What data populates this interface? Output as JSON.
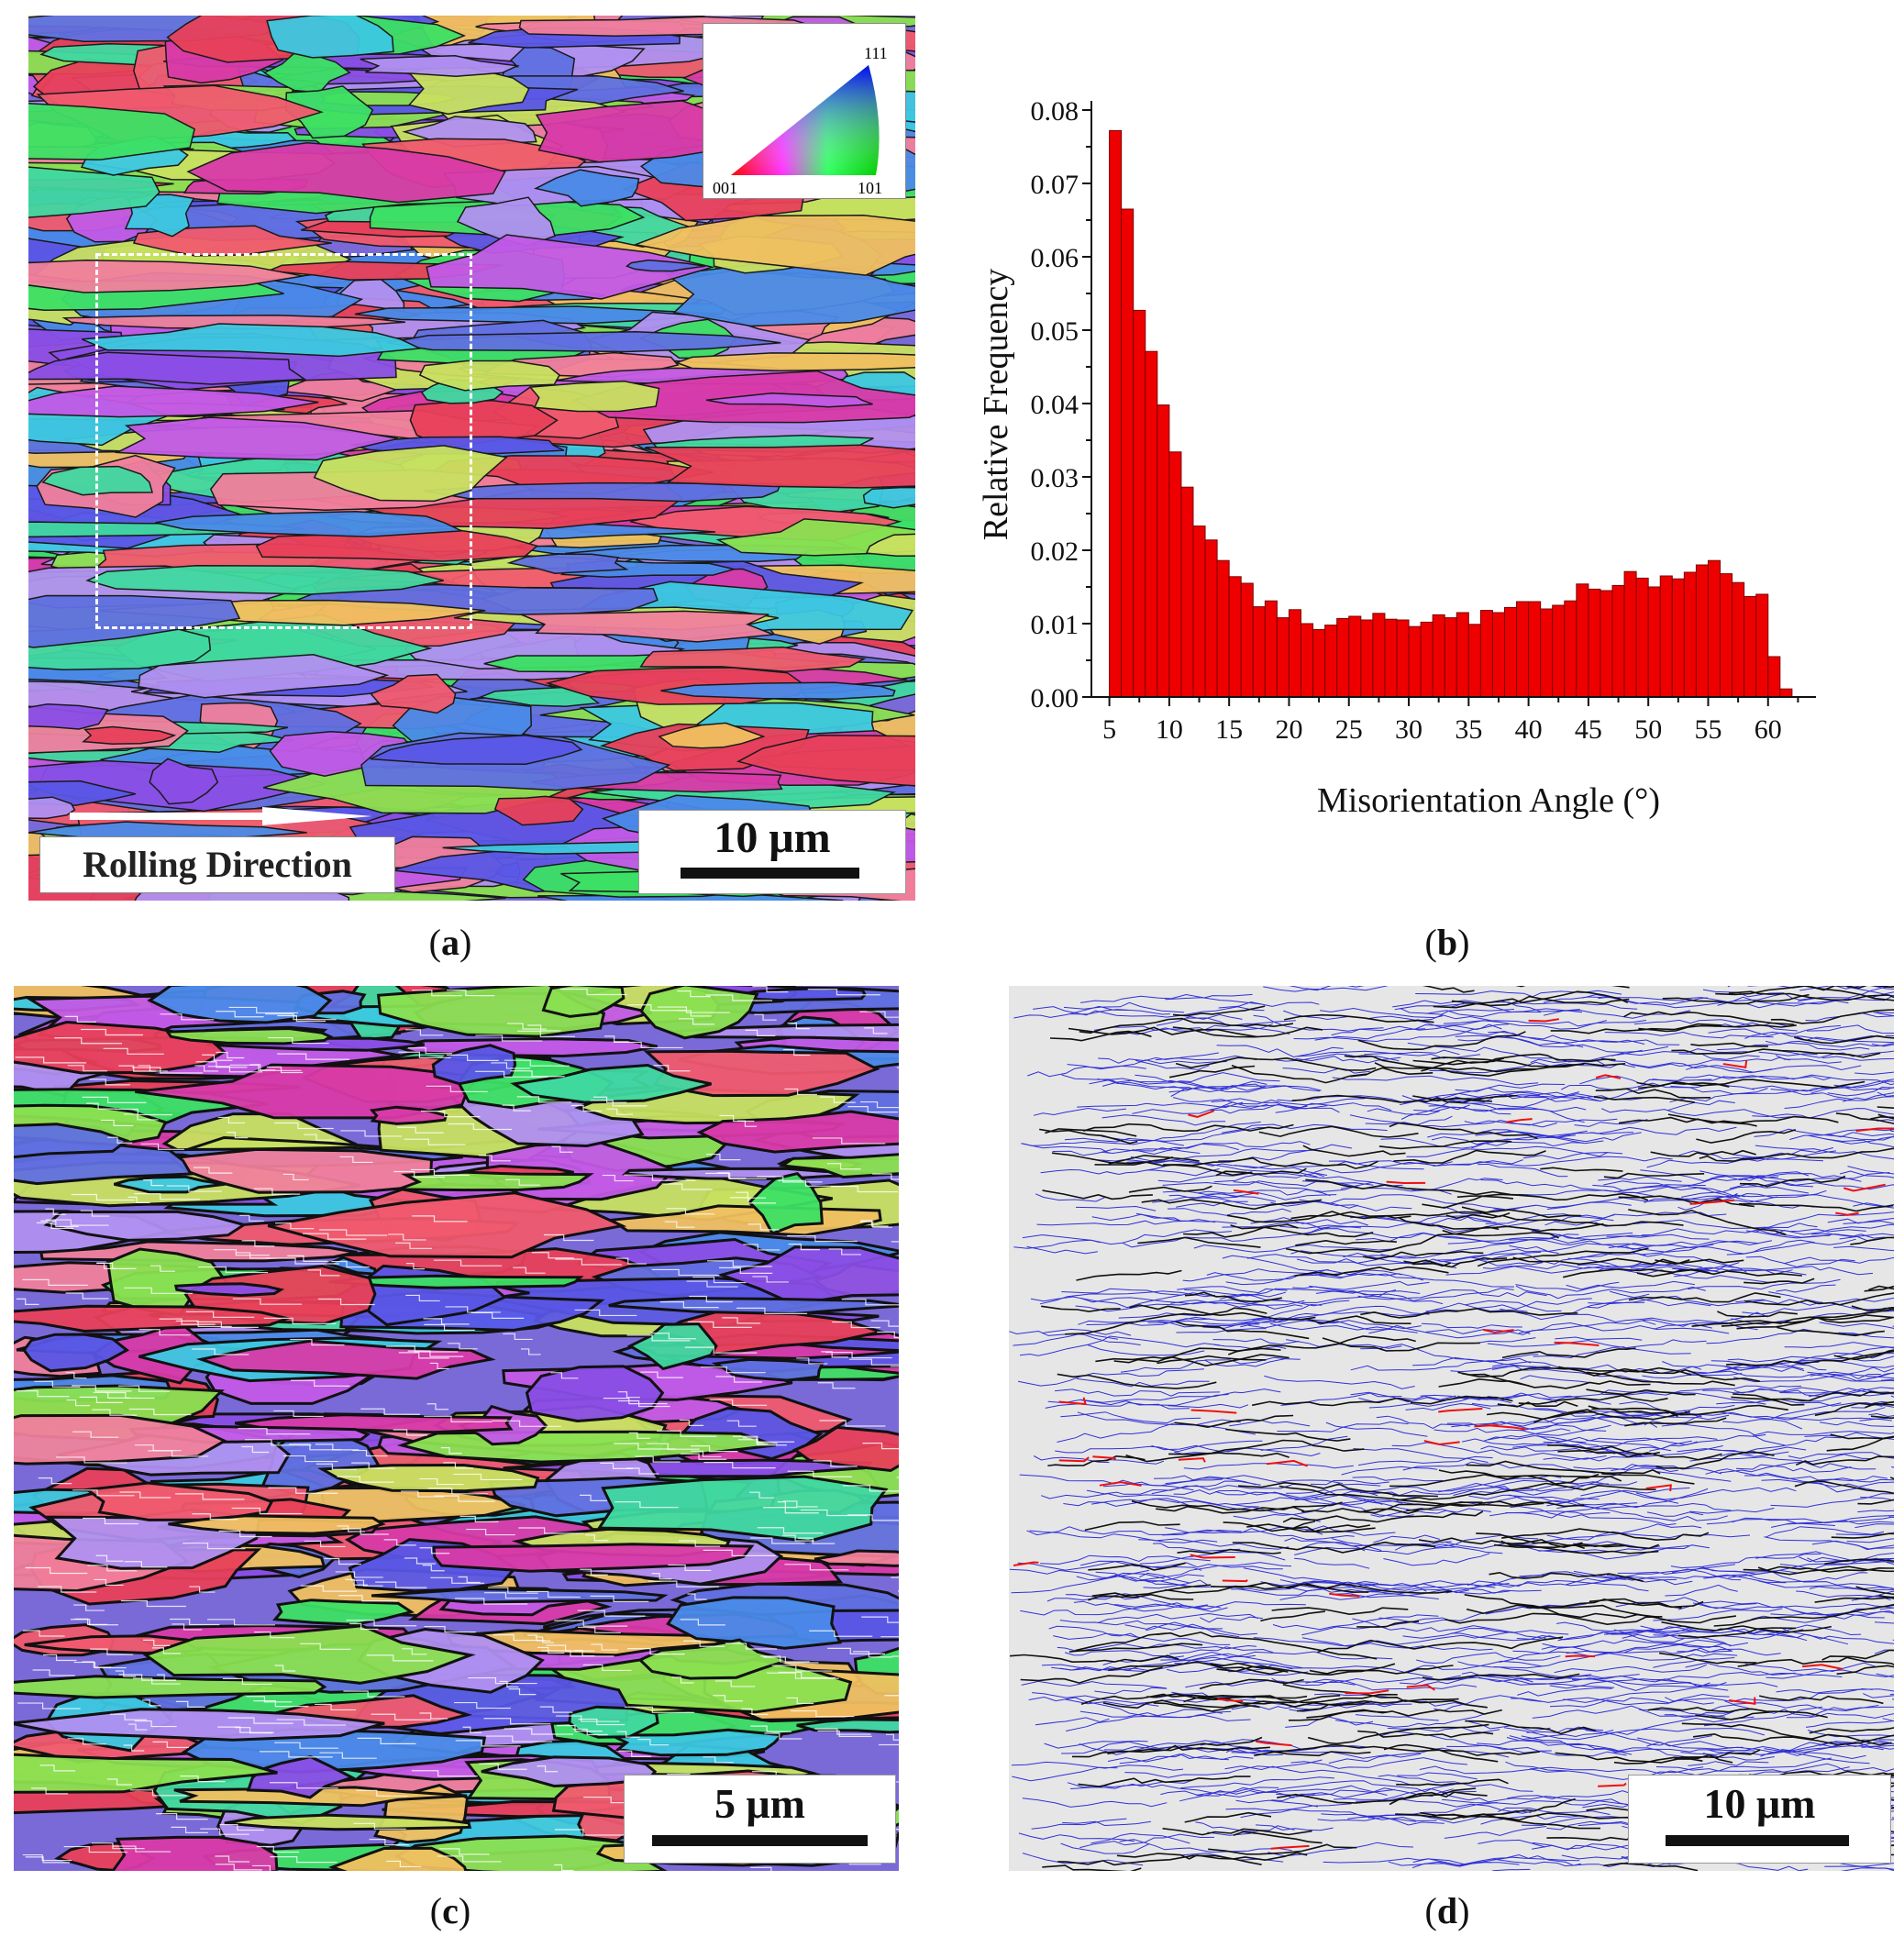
{
  "panel_a": {
    "ipf_key": {
      "top": "111",
      "left": "001",
      "right": "101"
    },
    "scale_label": "10 μm",
    "direction_label": "Rolling Direction",
    "caption_letter": "a"
  },
  "panel_b": {
    "caption_letter": "b",
    "chart_data": {
      "type": "bar",
      "xlabel": "Misorientation Angle (°)",
      "ylabel": "Relative Frequency",
      "xlim": [
        3.5,
        64
      ],
      "ylim": [
        0,
        0.08
      ],
      "bar_color": "#ee0000",
      "x_ticks": [
        "5",
        "10",
        "15",
        "20",
        "25",
        "30",
        "35",
        "40",
        "45",
        "50",
        "55",
        "60"
      ],
      "y_ticks": [
        "0.00",
        "0.01",
        "0.02",
        "0.03",
        "0.04",
        "0.05",
        "0.06",
        "0.07",
        "0.08"
      ],
      "x": [
        5.5,
        6.5,
        7.5,
        8.5,
        9.5,
        10.5,
        11.5,
        12.5,
        13.5,
        14.5,
        15.5,
        16.5,
        17.5,
        18.5,
        19.5,
        20.5,
        21.5,
        22.5,
        23.5,
        24.5,
        25.5,
        26.5,
        27.5,
        28.5,
        29.5,
        30.5,
        31.5,
        32.5,
        33.5,
        34.5,
        35.5,
        36.5,
        37.5,
        38.5,
        39.5,
        40.5,
        41.5,
        42.5,
        43.5,
        44.5,
        45.5,
        46.5,
        47.5,
        48.5,
        49.5,
        50.5,
        51.5,
        52.5,
        53.5,
        54.5,
        55.5,
        56.5,
        57.5,
        58.5,
        59.5,
        60.5,
        61.5
      ],
      "values": [
        0.0772,
        0.0665,
        0.0527,
        0.0471,
        0.0398,
        0.0334,
        0.0286,
        0.0233,
        0.0214,
        0.0186,
        0.0164,
        0.0155,
        0.0123,
        0.0131,
        0.0108,
        0.0119,
        0.01,
        0.0092,
        0.0098,
        0.0107,
        0.011,
        0.0105,
        0.0114,
        0.0106,
        0.0105,
        0.0096,
        0.0102,
        0.0112,
        0.0108,
        0.0115,
        0.0099,
        0.0118,
        0.0115,
        0.0122,
        0.013,
        0.013,
        0.012,
        0.0125,
        0.0131,
        0.0154,
        0.0147,
        0.0145,
        0.0152,
        0.0171,
        0.0162,
        0.015,
        0.0165,
        0.0161,
        0.017,
        0.018,
        0.0186,
        0.0168,
        0.0156,
        0.0137,
        0.014,
        0.0055,
        0.0011
      ]
    }
  },
  "panel_c": {
    "scale_label": "5 μm",
    "caption_letter": "c"
  },
  "panel_d": {
    "scale_label": "10 μm",
    "caption_letter": "d"
  }
}
